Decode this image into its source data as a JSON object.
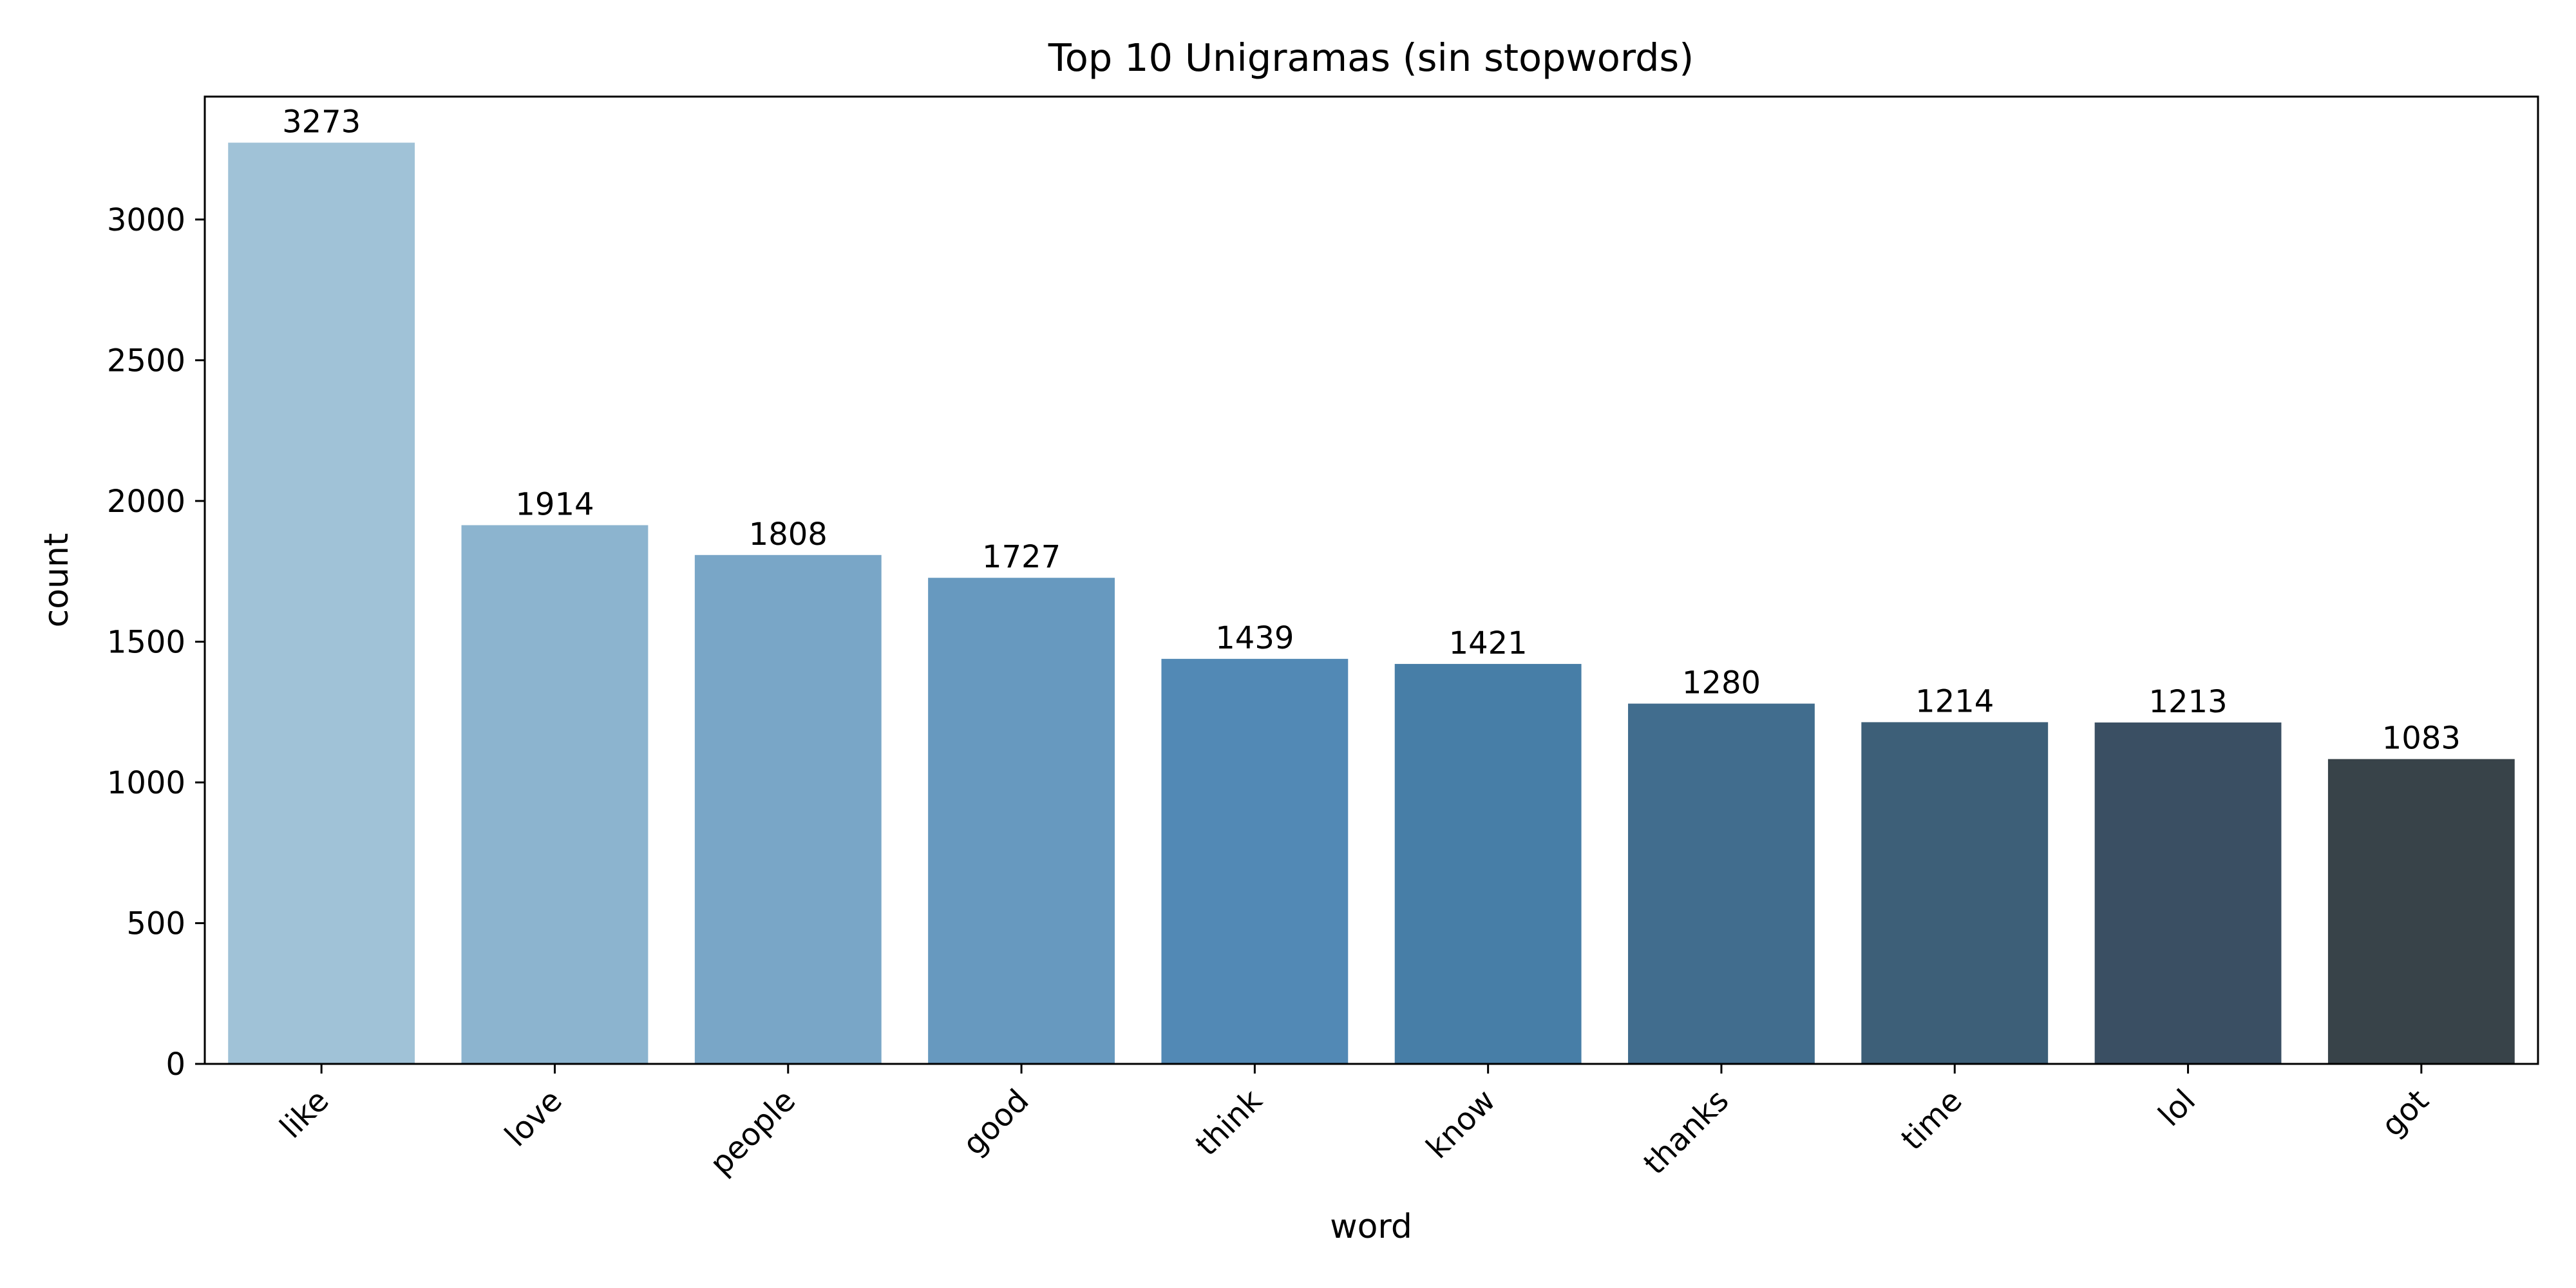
{
  "chart_data": {
    "type": "bar",
    "title": "Top 10 Unigramas (sin stopwords)",
    "xlabel": "word",
    "ylabel": "count",
    "categories": [
      "like",
      "love",
      "people",
      "good",
      "think",
      "know",
      "thanks",
      "time",
      "lol",
      "got"
    ],
    "values": [
      3273,
      1914,
      1808,
      1727,
      1439,
      1421,
      1280,
      1214,
      1213,
      1083
    ],
    "data_labels": [
      "3273",
      "1914",
      "1808",
      "1727",
      "1439",
      "1421",
      "1280",
      "1214",
      "1213",
      "1083"
    ],
    "ylim": [
      0,
      3436.65
    ],
    "yticks": [
      0,
      500,
      1000,
      1500,
      2000,
      2500,
      3000
    ],
    "ytick_labels": [
      "0",
      "500",
      "1000",
      "1500",
      "2000",
      "2500",
      "3000"
    ],
    "grid": false,
    "legend": "none",
    "x_tick_rotation_deg": 45,
    "colors": [
      "#a0c2d7",
      "#8cb4cf",
      "#79a6c7",
      "#6799bf",
      "#5289b5",
      "#477ea7",
      "#416d8e",
      "#3d5f78",
      "#3a4f63",
      "#384349"
    ]
  }
}
